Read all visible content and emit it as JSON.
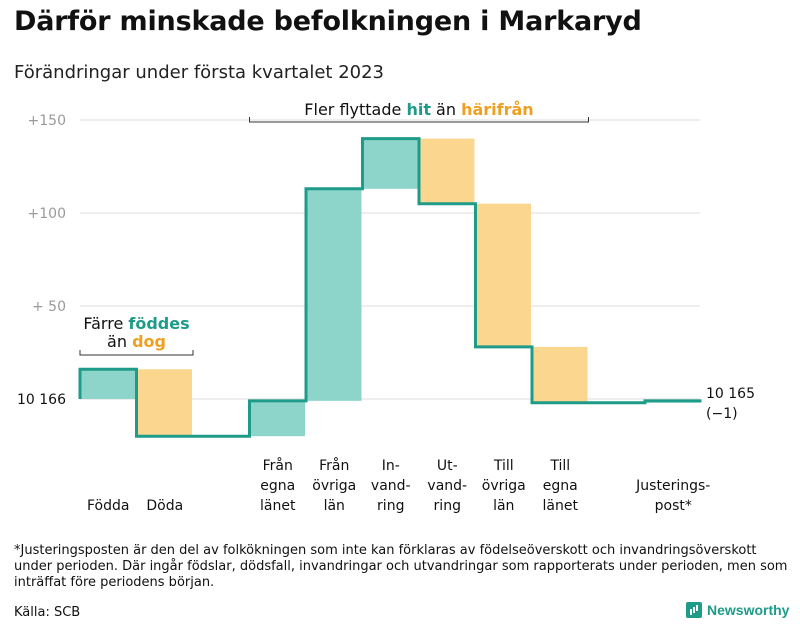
{
  "title": "Därför minskade befolkningen i Markaryd",
  "subtitle": "Förändringar under första kvartalet 2023",
  "footnote": "*Justeringsposten är den del av folkökningen som inte kan förklaras av födelseöverskott och invandringsöverskott under perioden. Där ingår födslar, dödsfall, invandringar och utvandringar som rapporterats under perioden, men som inträffat före periodens början.",
  "source": "Källa: SCB",
  "brand": "Newsworthy",
  "colors": {
    "increase": "#8dd5cb",
    "decrease": "#fbd68f",
    "line": "#1f9b89",
    "accent_teal": "#1f9b89",
    "accent_orange": "#f0a020",
    "grid": "#dddddd"
  },
  "chart_data": {
    "type": "waterfall",
    "start_value": 10166,
    "start_label": "10 166",
    "end_label": "10 165",
    "end_delta_label": "(−1)",
    "yticks": [
      {
        "value": 50,
        "label": "+ 50"
      },
      {
        "value": 100,
        "label": "+100"
      },
      {
        "value": 150,
        "label": "+150"
      }
    ],
    "ylim": [
      -30,
      155
    ],
    "steps": [
      {
        "label": [
          "Födda"
        ],
        "delta": 16
      },
      {
        "label": [
          "Döda"
        ],
        "delta": -36
      },
      {
        "label": [
          ""
        ],
        "delta": 0
      },
      {
        "label": [
          "Från",
          "egna",
          "länet"
        ],
        "delta": 19
      },
      {
        "label": [
          "Från",
          "övriga",
          "län"
        ],
        "delta": 114
      },
      {
        "label": [
          "In-",
          "vand-",
          "ring"
        ],
        "delta": 27
      },
      {
        "label": [
          "Ut-",
          "vand-",
          "ring"
        ],
        "delta": -35
      },
      {
        "label": [
          "Till",
          "övriga",
          "län"
        ],
        "delta": -77
      },
      {
        "label": [
          "Till",
          "egna",
          "länet"
        ],
        "delta": -30
      },
      {
        "label": [
          ""
        ],
        "delta": 0
      },
      {
        "label": [
          "Justerings-",
          "post*"
        ],
        "delta": 1
      }
    ],
    "annotations": [
      {
        "id": "births",
        "line1": [
          {
            "t": "Färre ",
            "c": "text"
          },
          {
            "t": "föddes",
            "c": "teal"
          }
        ],
        "line2": [
          {
            "t": "än ",
            "c": "text"
          },
          {
            "t": "dog",
            "c": "orange"
          }
        ]
      },
      {
        "id": "migration",
        "line1": [
          {
            "t": "Fler flyttade ",
            "c": "text"
          },
          {
            "t": "hit",
            "c": "teal"
          },
          {
            "t": " än ",
            "c": "text"
          },
          {
            "t": "härifrån",
            "c": "orange"
          }
        ]
      }
    ]
  }
}
